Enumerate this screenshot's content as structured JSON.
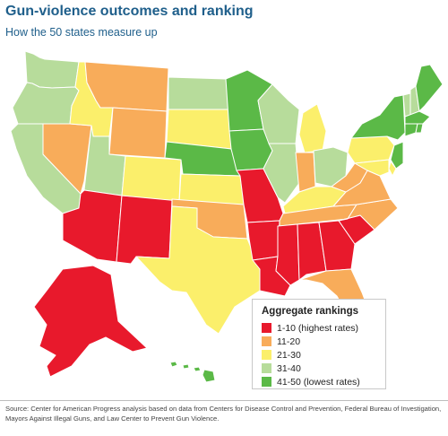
{
  "title": "Gun-violence outcomes and ranking",
  "subtitle": "How the 50 states measure up",
  "legend": {
    "title": "Aggregate rankings",
    "items": [
      {
        "label": "1-10 (highest rates)",
        "color": "#e8192c"
      },
      {
        "label": "11-20",
        "color": "#f8ac5a"
      },
      {
        "label": "21-30",
        "color": "#fbef6b"
      },
      {
        "label": "31-40",
        "color": "#b7dc9b"
      },
      {
        "label": "41-50 (lowest rates)",
        "color": "#5bb947"
      }
    ]
  },
  "source": "Source: Center for American Progress analysis based on data from Centers for Disease Control and Prevention, Federal Bureau of Investigation, Mayors Against Illegal Guns, and Law Center to Prevent Gun Violence.",
  "map_data": {
    "states": [
      {
        "id": "WA",
        "tier": 4
      },
      {
        "id": "OR",
        "tier": 4
      },
      {
        "id": "CA",
        "tier": 4
      },
      {
        "id": "NV",
        "tier": 2
      },
      {
        "id": "ID",
        "tier": 3
      },
      {
        "id": "MT",
        "tier": 2
      },
      {
        "id": "WY",
        "tier": 2
      },
      {
        "id": "UT",
        "tier": 4
      },
      {
        "id": "AZ",
        "tier": 1
      },
      {
        "id": "NM",
        "tier": 1
      },
      {
        "id": "CO",
        "tier": 3
      },
      {
        "id": "ND",
        "tier": 4
      },
      {
        "id": "SD",
        "tier": 3
      },
      {
        "id": "NE",
        "tier": 5
      },
      {
        "id": "KS",
        "tier": 3
      },
      {
        "id": "OK",
        "tier": 2
      },
      {
        "id": "TX",
        "tier": 3
      },
      {
        "id": "MN",
        "tier": 5
      },
      {
        "id": "IA",
        "tier": 5
      },
      {
        "id": "MO",
        "tier": 1
      },
      {
        "id": "AR",
        "tier": 1
      },
      {
        "id": "LA",
        "tier": 1
      },
      {
        "id": "WI",
        "tier": 4
      },
      {
        "id": "IL",
        "tier": 4
      },
      {
        "id": "MI",
        "tier": 3
      },
      {
        "id": "IN",
        "tier": 2
      },
      {
        "id": "OH",
        "tier": 4
      },
      {
        "id": "KY",
        "tier": 3
      },
      {
        "id": "TN",
        "tier": 2
      },
      {
        "id": "MS",
        "tier": 1
      },
      {
        "id": "AL",
        "tier": 1
      },
      {
        "id": "GA",
        "tier": 1
      },
      {
        "id": "FL",
        "tier": 2
      },
      {
        "id": "SC",
        "tier": 1
      },
      {
        "id": "NC",
        "tier": 2
      },
      {
        "id": "VA",
        "tier": 2
      },
      {
        "id": "WV",
        "tier": 2
      },
      {
        "id": "PA",
        "tier": 3
      },
      {
        "id": "NY",
        "tier": 5
      },
      {
        "id": "VT",
        "tier": 4
      },
      {
        "id": "NH",
        "tier": 4
      },
      {
        "id": "ME",
        "tier": 5
      },
      {
        "id": "MA",
        "tier": 5
      },
      {
        "id": "CT",
        "tier": 5
      },
      {
        "id": "RI",
        "tier": 5
      },
      {
        "id": "NJ",
        "tier": 5
      },
      {
        "id": "DE",
        "tier": 3
      },
      {
        "id": "MD",
        "tier": 3
      },
      {
        "id": "AK",
        "tier": 1
      },
      {
        "id": "HI",
        "tier": 5
      }
    ]
  }
}
